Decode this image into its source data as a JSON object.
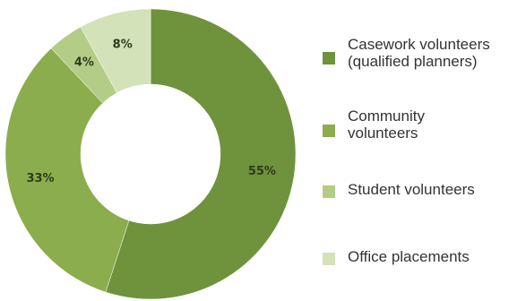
{
  "chart_data": {
    "type": "pie",
    "title": "",
    "donut": true,
    "legend_position": "right",
    "slices": [
      {
        "label": "Casework volunteers\n(qualified planners)",
        "value": 55,
        "value_label": "55%",
        "color": "#6f933c"
      },
      {
        "label": "Community\nvolunteers",
        "value": 33,
        "value_label": "33%",
        "color": "#8bad4d"
      },
      {
        "label": "Student volunteers",
        "value": 4,
        "value_label": "4%",
        "color": "#b3cd87"
      },
      {
        "label": "Office placements",
        "value": 8,
        "value_label": "8%",
        "color": "#d3e2b9"
      }
    ]
  }
}
